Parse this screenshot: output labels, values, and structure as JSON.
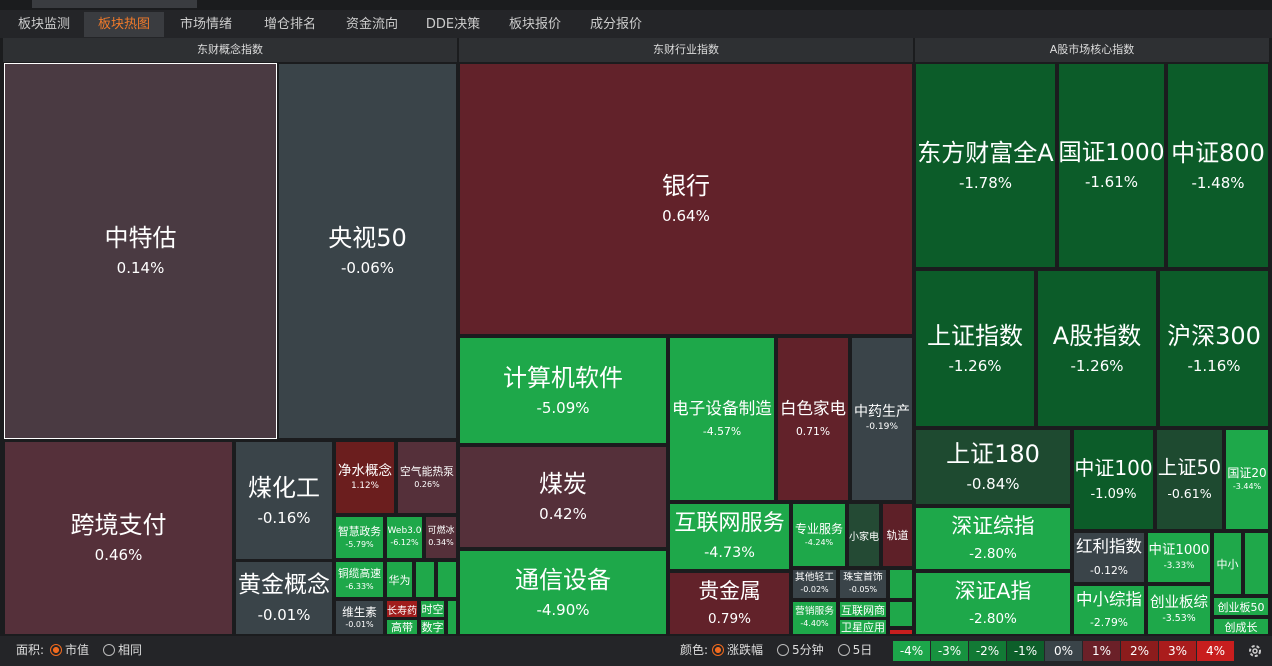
{
  "tabs": [
    "板块监测",
    "板块热图",
    "市场情绪",
    "增仓排名",
    "资金流向",
    "DDE决策",
    "板块报价",
    "成分报价"
  ],
  "active_tab": 1,
  "panels": [
    {
      "title": "东财概念指数",
      "tiles": [
        {
          "name": "中特估",
          "change": "0.14%"
        },
        {
          "name": "央视50",
          "change": "-0.06%"
        },
        {
          "name": "跨境支付",
          "change": "0.46%"
        },
        {
          "name": "煤化工",
          "change": "-0.16%"
        },
        {
          "name": "黄金概念",
          "change": "-0.01%"
        },
        {
          "name": "净水概念",
          "change": "1.12%"
        },
        {
          "name": "空气能热泵",
          "change": "0.26%"
        },
        {
          "name": "智慧政务",
          "change": "-5.79%"
        },
        {
          "name": "Web3.0",
          "change": "-6.12%"
        },
        {
          "name": "可燃冰",
          "change": "0.34%"
        },
        {
          "name": "铜缆高速",
          "change": "-6.33%"
        },
        {
          "name": "维生素",
          "change": "-0.01%"
        }
      ],
      "small": [
        "华为",
        "长寿药",
        "高带",
        "时空",
        "数字"
      ]
    },
    {
      "title": "东财行业指数",
      "tiles": [
        {
          "name": "银行",
          "change": "0.64%"
        },
        {
          "name": "计算机软件",
          "change": "-5.09%"
        },
        {
          "name": "煤炭",
          "change": "0.42%"
        },
        {
          "name": "通信设备",
          "change": "-4.90%"
        },
        {
          "name": "电子设备制造",
          "change": "-4.57%"
        },
        {
          "name": "白色家电",
          "change": "0.71%"
        },
        {
          "name": "中药生产",
          "change": "-0.19%"
        },
        {
          "name": "互联网服务",
          "change": "-4.73%"
        },
        {
          "name": "贵金属",
          "change": "0.79%"
        },
        {
          "name": "专业服务",
          "change": "-4.24%"
        },
        {
          "name": "其他轻工",
          "change": "-0.02%"
        },
        {
          "name": "珠宝首饰",
          "change": "-0.05%"
        },
        {
          "name": "营销服务",
          "change": "-4.40%"
        }
      ],
      "small": [
        "小家电",
        "轨道",
        "互联网商",
        "卫星应用"
      ]
    },
    {
      "title": "A股市场核心指数",
      "tiles": [
        {
          "name": "东方财富全A",
          "change": "-1.78%"
        },
        {
          "name": "国证1000",
          "change": "-1.61%"
        },
        {
          "name": "中证800",
          "change": "-1.48%"
        },
        {
          "name": "上证指数",
          "change": "-1.26%"
        },
        {
          "name": "A股指数",
          "change": "-1.26%"
        },
        {
          "name": "沪深300",
          "change": "-1.16%"
        },
        {
          "name": "上证180",
          "change": "-0.84%"
        },
        {
          "name": "深证综指",
          "change": "-2.80%"
        },
        {
          "name": "深证A指",
          "change": "-2.80%"
        },
        {
          "name": "中证100",
          "change": "-1.09%"
        },
        {
          "name": "上证50",
          "change": "-0.61%"
        },
        {
          "name": "国证20",
          "change": "-3.44%"
        },
        {
          "name": "红利指数",
          "change": "-0.12%"
        },
        {
          "name": "中证1000",
          "change": "-3.33%"
        },
        {
          "name": "中小综指",
          "change": "-2.79%"
        },
        {
          "name": "创业板综",
          "change": "-3.53%"
        }
      ],
      "small": [
        "中小",
        "创业板50",
        "创成长"
      ]
    }
  ],
  "area_label": "面积:",
  "area_options": [
    "市值",
    "相同"
  ],
  "color_label": "颜色:",
  "color_options": [
    "涨跌幅",
    "5分钟",
    "5日"
  ],
  "legend": [
    {
      "label": "-4%",
      "color": "#1ca64a"
    },
    {
      "label": "-3%",
      "color": "#17923f"
    },
    {
      "label": "-2%",
      "color": "#127a35"
    },
    {
      "label": "-1%",
      "color": "#0d5f2a"
    },
    {
      "label": "0%",
      "color": "#3a4449"
    },
    {
      "label": "1%",
      "color": "#6b2028"
    },
    {
      "label": "2%",
      "color": "#8c1c1c"
    },
    {
      "label": "3%",
      "color": "#aa1c1c"
    },
    {
      "label": "4%",
      "color": "#c81e1e"
    }
  ]
}
